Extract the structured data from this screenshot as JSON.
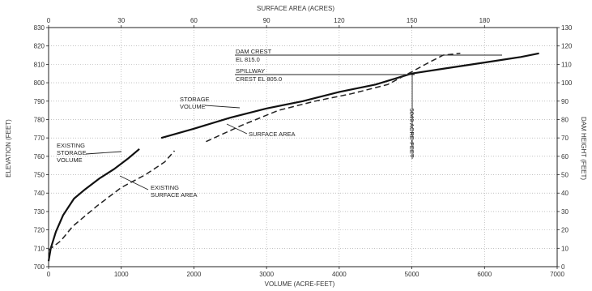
{
  "chart_data": {
    "type": "line",
    "title": "",
    "top_axis_title": "SURFACE AREA (ACRES)",
    "xlabel": "VOLUME (ACRE-FEET)",
    "ylabel": "ELEVATION (FEET)",
    "right_axis_title": "DAM HEIGHT (FEET)",
    "xlim": [
      0,
      7000
    ],
    "top_xlim": [
      0,
      210
    ],
    "ylim": [
      700,
      830
    ],
    "right_ylim": [
      0,
      130
    ],
    "x_ticks": [
      "0",
      "1000",
      "2000",
      "3000",
      "4000",
      "5000",
      "6000",
      "7000"
    ],
    "top_ticks": [
      "0",
      "30",
      "60",
      "90",
      "120",
      "150",
      "180"
    ],
    "y_ticks": [
      "700",
      "710",
      "720",
      "730",
      "740",
      "750",
      "760",
      "770",
      "780",
      "790",
      "800",
      "810",
      "820",
      "830"
    ],
    "right_ticks": [
      "0",
      "10",
      "20",
      "30",
      "40",
      "50",
      "60",
      "70",
      "80",
      "90",
      "100",
      "110",
      "120",
      "130"
    ],
    "grid": true,
    "series": [
      {
        "name": "EXISTING STORAGE VOLUME",
        "style": "solid",
        "axis": "volume",
        "points": [
          [
            0,
            703
          ],
          [
            30,
            710
          ],
          [
            100,
            719
          ],
          [
            200,
            728
          ],
          [
            350,
            737
          ],
          [
            500,
            742
          ],
          [
            700,
            748
          ],
          [
            900,
            753
          ],
          [
            1100,
            759
          ],
          [
            1250,
            764
          ]
        ]
      },
      {
        "name": "STORAGE VOLUME",
        "style": "solid",
        "axis": "volume",
        "points": [
          [
            1550,
            770
          ],
          [
            2000,
            775
          ],
          [
            2500,
            781
          ],
          [
            3000,
            786
          ],
          [
            3500,
            790
          ],
          [
            4000,
            795
          ],
          [
            4500,
            799
          ],
          [
            5000,
            805
          ],
          [
            5500,
            808
          ],
          [
            6000,
            811
          ],
          [
            6500,
            814
          ],
          [
            6750,
            816
          ]
        ]
      },
      {
        "name": "EXISTING SURFACE AREA",
        "style": "dashed",
        "axis": "surface_area",
        "points": [
          [
            0,
            709
          ],
          [
            5,
            714
          ],
          [
            10,
            722
          ],
          [
            20,
            733
          ],
          [
            30,
            743
          ],
          [
            40,
            750
          ],
          [
            48,
            757
          ],
          [
            52,
            763
          ]
        ]
      },
      {
        "name": "SURFACE AREA",
        "style": "dashed",
        "axis": "surface_area",
        "points": [
          [
            65,
            768
          ],
          [
            80,
            777
          ],
          [
            95,
            785
          ],
          [
            110,
            790
          ],
          [
            125,
            794
          ],
          [
            140,
            799
          ],
          [
            150,
            806
          ],
          [
            157,
            811
          ],
          [
            163,
            815
          ],
          [
            170,
            816
          ]
        ]
      }
    ],
    "annotations": {
      "dam_crest": "DAM CREST",
      "dam_crest_el": "EL 815.0",
      "spillway": "SPILLWAY",
      "spillway_el": "CREST EL 805.0",
      "volume_at_spillway": "5049 ACRE-FEET",
      "storage_l1": "STORAGE",
      "storage_l2": "VOLUME",
      "surface_area": "SURFACE AREA",
      "existing_storage_l1": "EXISTING",
      "existing_storage_l2": "STORAGE",
      "existing_storage_l3": "VOLUME",
      "existing_surface_l1": "EXISTING",
      "existing_surface_l2": "SURFACE AREA"
    }
  }
}
